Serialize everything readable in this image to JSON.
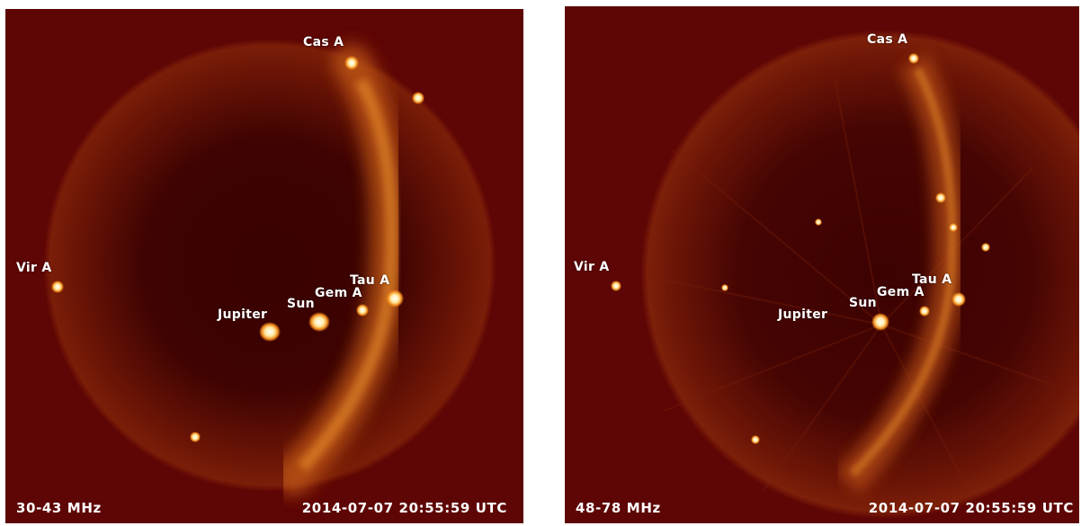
{
  "panels": [
    {
      "band": "30-43 MHz",
      "timestamp": "2014-07-07 20:55:59 UTC",
      "sources": {
        "cas_a": "Cas A",
        "vir_a": "Vir A",
        "tau_a": "Tau A",
        "gem_a": "Gem A",
        "sun": "Sun",
        "jupiter": "Jupiter"
      }
    },
    {
      "band": "48-78 MHz",
      "timestamp": "2014-07-07 20:55:59 UTC",
      "sources": {
        "cas_a": "Cas A",
        "vir_a": "Vir A",
        "tau_a": "Tau A",
        "gem_a": "Gem A",
        "sun": "Sun",
        "jupiter": "Jupiter"
      }
    }
  ],
  "colors": {
    "background": "#5e0505",
    "sky_dark": "#2a0101",
    "galactic_plane": "#d9741c",
    "source_bright": "#fff6d0"
  }
}
